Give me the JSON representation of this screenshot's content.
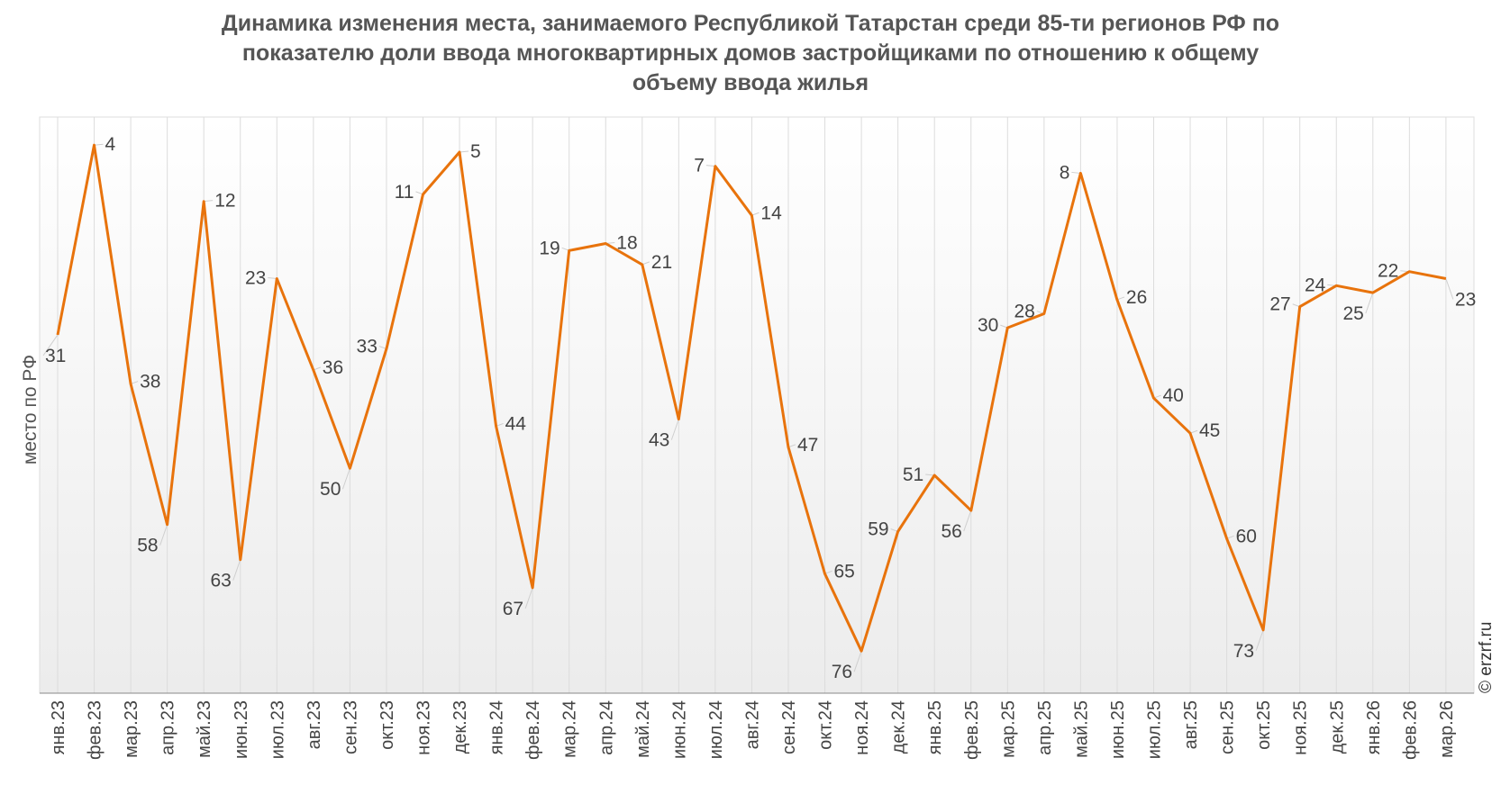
{
  "chart_data": {
    "type": "line",
    "title_lines": [
      "Динамика изменения места, занимаемого Республикой Татарстан среди 85-ти регионов РФ по",
      "показателю доли ввода многоквартирных домов застройщиками по отношению к общему",
      "объему ввода жилья"
    ],
    "ylabel": "место по РФ",
    "xlabel": "",
    "y_inverted": true,
    "ylim": [
      0,
      82
    ],
    "grid": "vertical",
    "legend": "none",
    "line_color": "#E8730C",
    "categories": [
      "янв.23",
      "фев.23",
      "мар.23",
      "апр.23",
      "май.23",
      "июн.23",
      "июл.23",
      "авг.23",
      "сен.23",
      "окт.23",
      "ноя.23",
      "дек.23",
      "янв.24",
      "фев.24",
      "мар.24",
      "апр.24",
      "май.24",
      "июн.24",
      "июл.24",
      "авг.24",
      "сен.24",
      "окт.24",
      "ноя.24",
      "дек.24",
      "янв.25",
      "фев.25",
      "мар.25",
      "апр.25",
      "май.25",
      "июн.25",
      "июл.25",
      "авг.25",
      "сен.25",
      "окт.25",
      "ноя.25",
      "дек.25",
      "янв.26",
      "фев.26",
      "мар.26"
    ],
    "series": [
      {
        "values": [
          31,
          4,
          38,
          58,
          12,
          63,
          23,
          36,
          50,
          33,
          11,
          5,
          44,
          67,
          19,
          18,
          21,
          43,
          7,
          14,
          47,
          65,
          76,
          59,
          51,
          56,
          30,
          28,
          8,
          26,
          40,
          45,
          60,
          73,
          27,
          24,
          25,
          22,
          23
        ]
      }
    ]
  },
  "copyright": "© erzrf.ru"
}
